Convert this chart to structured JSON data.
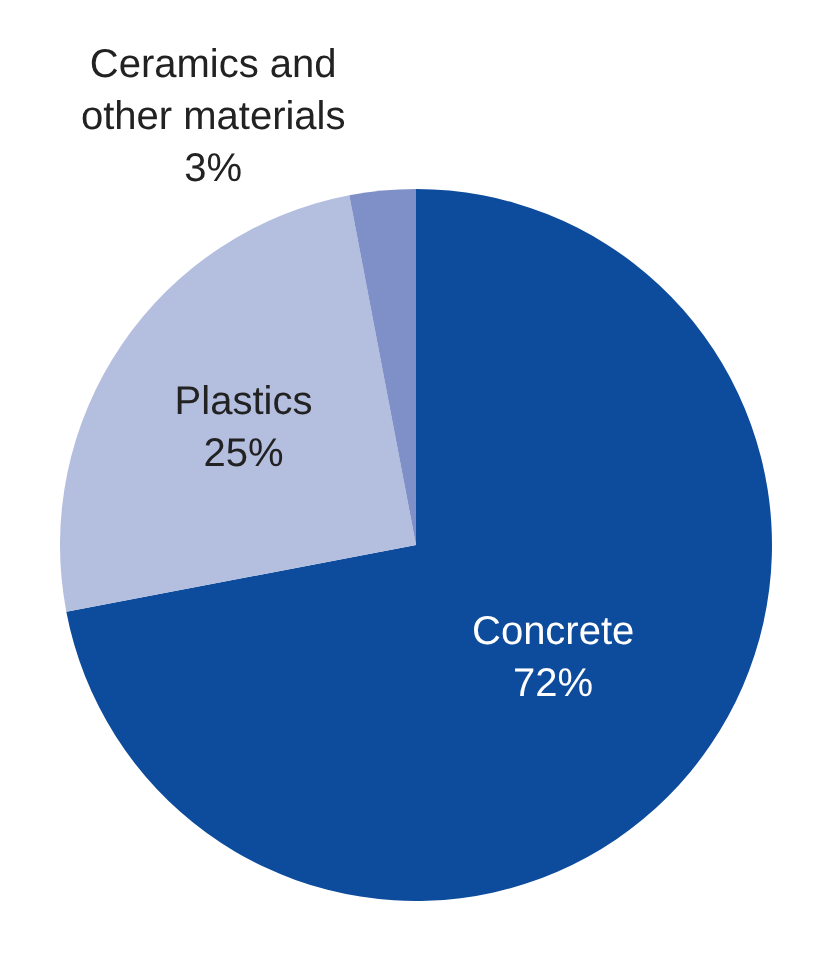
{
  "chart_data": {
    "type": "pie",
    "categories": [
      "Concrete",
      "Plastics",
      "Ceramics and\nother materials"
    ],
    "values": [
      72,
      25,
      3
    ],
    "colors": [
      "#0d4c9c",
      "#b4bedf",
      "#7f90c8"
    ],
    "value_labels": [
      "72%",
      "25%",
      "3%"
    ]
  }
}
